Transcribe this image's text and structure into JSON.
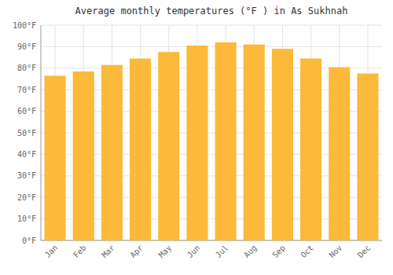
{
  "chart_data": {
    "type": "bar",
    "title": "Average monthly temperatures (°F ) in As Sukhnah",
    "categories": [
      "Jan",
      "Feb",
      "Mar",
      "Apr",
      "May",
      "Jun",
      "Jul",
      "Aug",
      "Sep",
      "Oct",
      "Nov",
      "Dec"
    ],
    "values": [
      76.5,
      78.5,
      81.5,
      84.5,
      87.5,
      90.5,
      92,
      91,
      89,
      84.5,
      80.5,
      77.5
    ],
    "color": "#FDB93A",
    "ylim": [
      0,
      100
    ],
    "yticks": [
      {
        "value": 0,
        "label": "0°F"
      },
      {
        "value": 10,
        "label": "10°F"
      },
      {
        "value": 20,
        "label": "20°F"
      },
      {
        "value": 30,
        "label": "30°F"
      },
      {
        "value": 40,
        "label": "40°F"
      },
      {
        "value": 50,
        "label": "50°F"
      },
      {
        "value": 60,
        "label": "60°F"
      },
      {
        "value": 70,
        "label": "70°F"
      },
      {
        "value": 80,
        "label": "80°F"
      },
      {
        "value": 90,
        "label": "90°F"
      },
      {
        "value": 100,
        "label": "100°F"
      }
    ],
    "grid": true
  }
}
